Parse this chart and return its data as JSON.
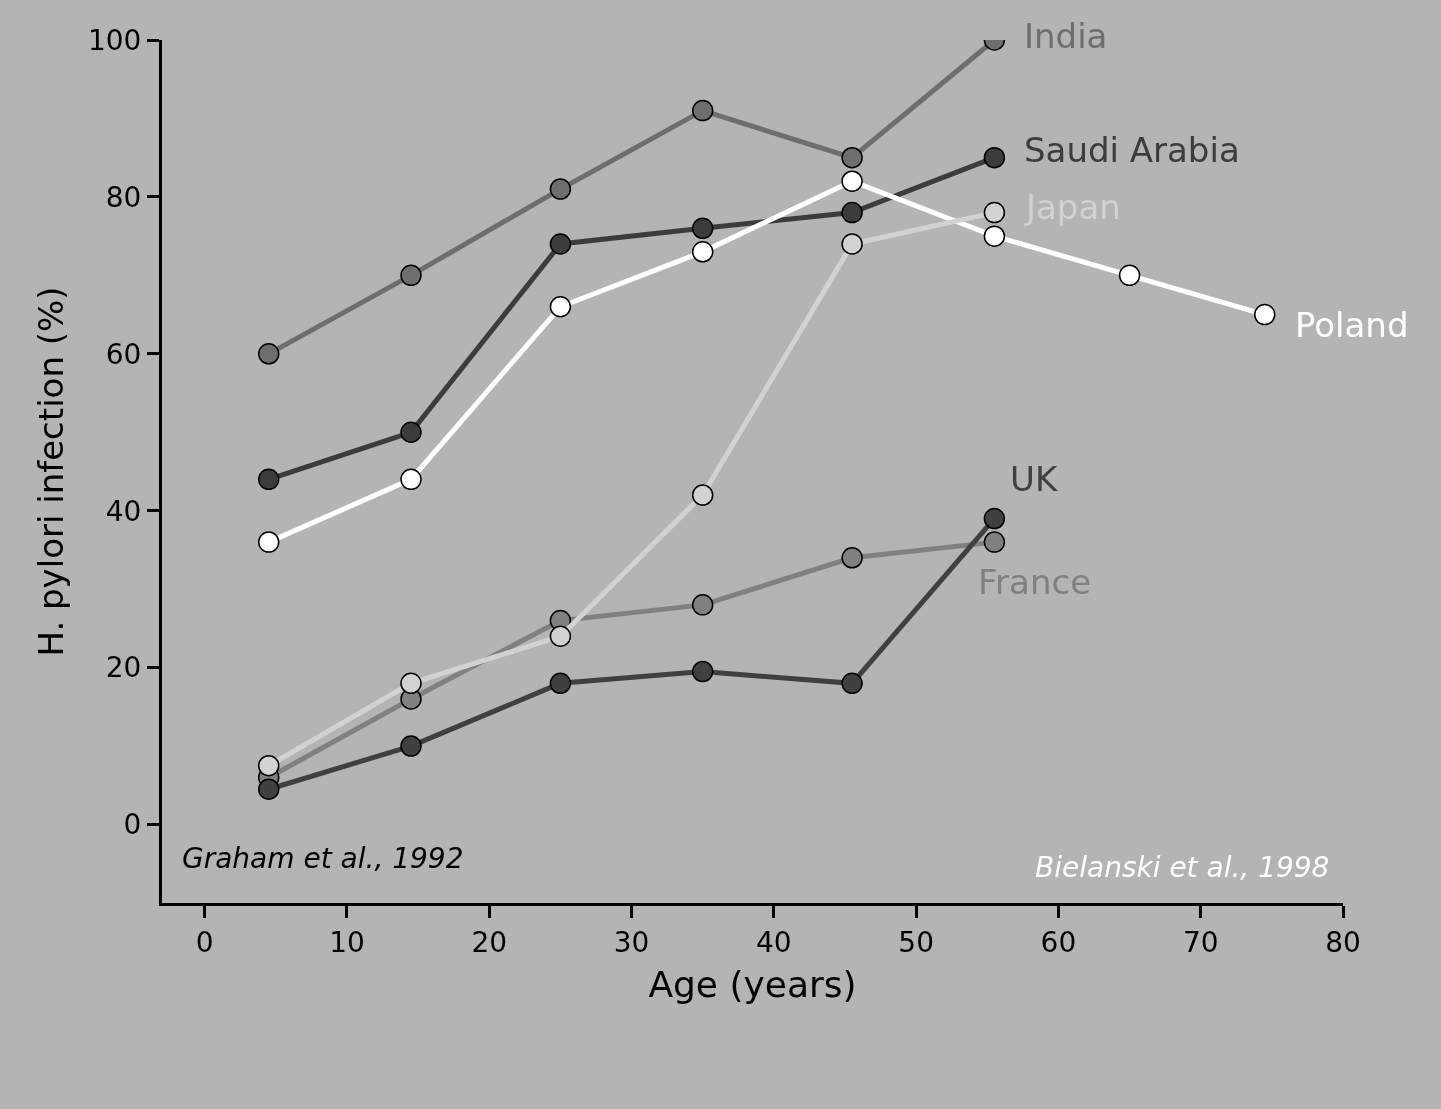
{
  "chart_data": {
    "type": "line",
    "xlabel": "Age (years)",
    "ylabel": "H. pylori infection (%)",
    "xlim": [
      -3,
      80
    ],
    "ylim": [
      -10,
      100
    ],
    "xticks": [
      0,
      10,
      20,
      30,
      40,
      50,
      60,
      70,
      80
    ],
    "yticks": [
      0,
      20,
      40,
      60,
      80,
      100
    ],
    "grid": false,
    "legend": false,
    "marker": "circle",
    "line_style": "solid",
    "series": [
      {
        "name": "India",
        "color": "#6e6e6e",
        "x": [
          4.5,
          14.5,
          25,
          35,
          45.5,
          55.5
        ],
        "values": [
          60,
          70,
          81,
          91,
          85,
          100
        ]
      },
      {
        "name": "Saudi Arabia",
        "color": "#3c3c3c",
        "x": [
          4.5,
          14.5,
          25,
          35,
          45.5,
          55.5
        ],
        "values": [
          44,
          50,
          74,
          76,
          78,
          85
        ]
      },
      {
        "name": "Poland",
        "color": "#ffffff",
        "x": [
          4.5,
          14.5,
          25,
          35,
          45.5,
          55.5,
          65,
          74.5
        ],
        "values": [
          36,
          44,
          66,
          73,
          82,
          75,
          70,
          65
        ]
      },
      {
        "name": "France",
        "color": "#808080",
        "x": [
          4.5,
          14.5,
          25,
          35,
          45.5,
          55.5
        ],
        "values": [
          6,
          16,
          26,
          28,
          34,
          36
        ]
      },
      {
        "name": "UK",
        "color": "#404040",
        "x": [
          4.5,
          14.5,
          25,
          35,
          45.5,
          55.5
        ],
        "values": [
          4.5,
          10,
          18,
          19.5,
          18,
          39
        ]
      },
      {
        "name": "Japan",
        "color": "#d2d2d2",
        "x": [
          4.5,
          14.5,
          25,
          35,
          45.5,
          55.5
        ],
        "values": [
          7.5,
          18,
          24,
          42,
          74,
          78
        ]
      }
    ],
    "annotations": [
      "Graham et al., 1992",
      "Bielanski et al., 1998"
    ]
  }
}
